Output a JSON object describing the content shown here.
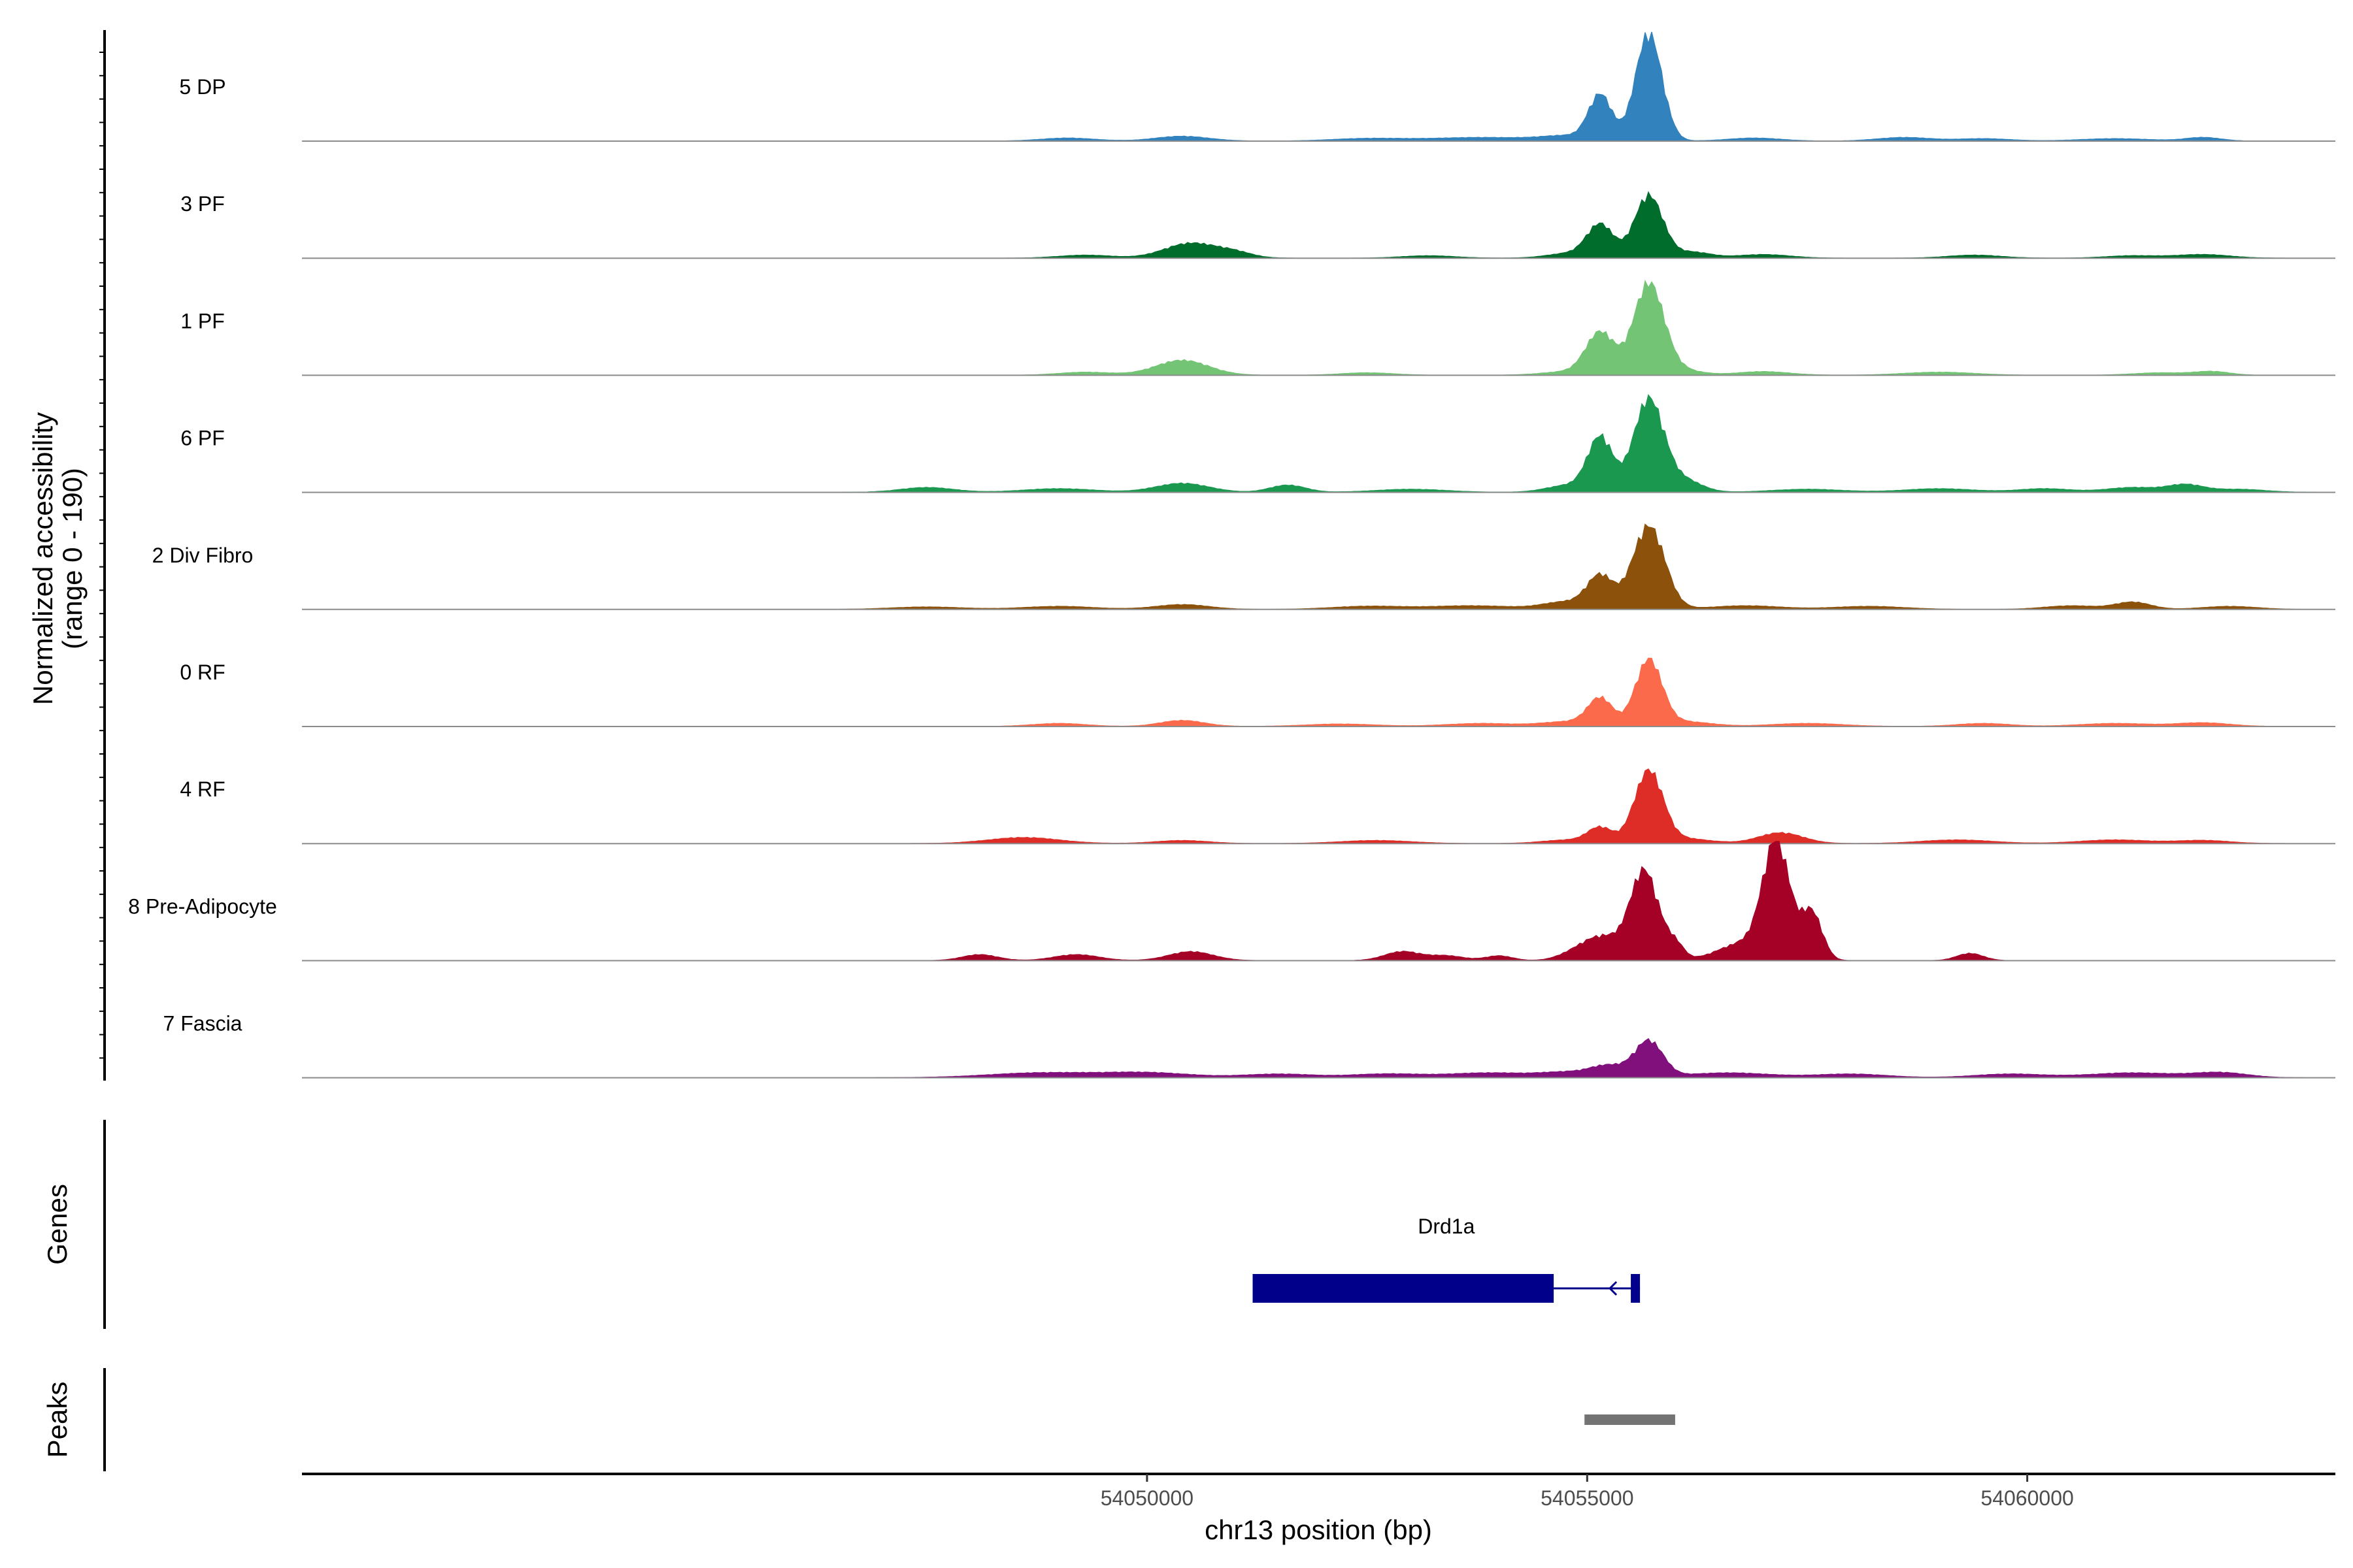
{
  "chart_data": {
    "type": "area",
    "title": "",
    "xlabel": "chr13 position (bp)",
    "xlim": [
      54040400,
      54063500
    ],
    "x_ticks": [
      54050000,
      54055000,
      54060000
    ],
    "x_tick_labels": [
      "54050000",
      "54055000",
      "54060000"
    ],
    "ylabel_line1": "Normalized accessibility",
    "ylabel_line2": "(range 0 - 190)",
    "ylim": [
      0,
      190
    ],
    "genes_label": "Genes",
    "peaks_label": "Peaks",
    "series": [
      {
        "name": "5 DP",
        "color": "#3182BD",
        "peaks": [
          [
            54055700,
            180,
            150
          ],
          [
            54055150,
            75,
            130
          ],
          [
            54054800,
            8,
            300
          ],
          [
            54053800,
            6,
            600
          ],
          [
            54050400,
            8,
            300
          ],
          [
            54049100,
            5,
            300
          ],
          [
            54052500,
            4,
            400
          ],
          [
            54056900,
            5,
            300
          ],
          [
            54058600,
            6,
            300
          ],
          [
            54059500,
            4,
            300
          ],
          [
            54061000,
            4,
            400
          ],
          [
            54062000,
            6,
            200
          ]
        ]
      },
      {
        "name": "3 PF",
        "color": "#006D2C",
        "peaks": [
          [
            54055700,
            105,
            160
          ],
          [
            54055150,
            55,
            150
          ],
          [
            54050500,
            25,
            300
          ],
          [
            54054800,
            8,
            250
          ],
          [
            54056200,
            10,
            200
          ],
          [
            54051000,
            8,
            200
          ],
          [
            54049300,
            5,
            300
          ],
          [
            54053200,
            4,
            300
          ],
          [
            54057000,
            6,
            300
          ],
          [
            54059400,
            5,
            300
          ],
          [
            54061200,
            4,
            300
          ],
          [
            54062000,
            6,
            300
          ]
        ]
      },
      {
        "name": "1 PF",
        "color": "#74C476",
        "peaks": [
          [
            54055700,
            150,
            170
          ],
          [
            54055150,
            70,
            160
          ],
          [
            54050400,
            25,
            300
          ],
          [
            54056000,
            10,
            250
          ],
          [
            54049300,
            5,
            300
          ],
          [
            54052500,
            4,
            300
          ],
          [
            54054800,
            6,
            300
          ],
          [
            54057000,
            6,
            300
          ],
          [
            54059000,
            5,
            400
          ],
          [
            54061500,
            4,
            300
          ],
          [
            54062100,
            6,
            200
          ]
        ]
      },
      {
        "name": "6 PF",
        "color": "#1A9850",
        "peaks": [
          [
            54055700,
            155,
            170
          ],
          [
            54055150,
            90,
            140
          ],
          [
            54056100,
            20,
            200
          ],
          [
            54054800,
            12,
            250
          ],
          [
            54050400,
            15,
            300
          ],
          [
            54051600,
            12,
            200
          ],
          [
            54049000,
            6,
            400
          ],
          [
            54047500,
            8,
            300
          ],
          [
            54053000,
            5,
            400
          ],
          [
            54057500,
            5,
            400
          ],
          [
            54059000,
            6,
            400
          ],
          [
            54060200,
            6,
            300
          ],
          [
            54061200,
            8,
            300
          ],
          [
            54061800,
            12,
            200
          ],
          [
            54062400,
            5,
            300
          ]
        ]
      },
      {
        "name": "2 Div Fibro",
        "color": "#8C510A",
        "peaks": [
          [
            54055700,
            140,
            180
          ],
          [
            54055150,
            55,
            150
          ],
          [
            54054750,
            12,
            250
          ],
          [
            54053700,
            6,
            500
          ],
          [
            54052500,
            5,
            400
          ],
          [
            54050400,
            8,
            300
          ],
          [
            54049000,
            5,
            400
          ],
          [
            54047500,
            4,
            400
          ],
          [
            54056800,
            6,
            400
          ],
          [
            54058200,
            5,
            400
          ],
          [
            54060500,
            6,
            300
          ],
          [
            54061200,
            12,
            200
          ],
          [
            54062300,
            5,
            300
          ]
        ]
      },
      {
        "name": "0 RF",
        "color": "#FB6A4A",
        "peaks": [
          [
            54055700,
            110,
            150
          ],
          [
            54055150,
            45,
            140
          ],
          [
            54054800,
            8,
            300
          ],
          [
            54050400,
            10,
            250
          ],
          [
            54056100,
            8,
            300
          ],
          [
            54049000,
            5,
            300
          ],
          [
            54052200,
            4,
            400
          ],
          [
            54053800,
            5,
            400
          ],
          [
            54057500,
            5,
            400
          ],
          [
            54059500,
            5,
            300
          ],
          [
            54061000,
            5,
            400
          ],
          [
            54062000,
            6,
            300
          ]
        ]
      },
      {
        "name": "4 RF",
        "color": "#DE2D26",
        "peaks": [
          [
            54055700,
            120,
            160
          ],
          [
            54055150,
            25,
            140
          ],
          [
            54057200,
            18,
            250
          ],
          [
            54048600,
            10,
            400
          ],
          [
            54054800,
            6,
            300
          ],
          [
            54056100,
            8,
            300
          ],
          [
            54050400,
            5,
            300
          ],
          [
            54052600,
            5,
            400
          ],
          [
            54059200,
            6,
            400
          ],
          [
            54061000,
            6,
            400
          ],
          [
            54062000,
            5,
            300
          ]
        ]
      },
      {
        "name": "8 Pre-Adipocyte",
        "color": "#A50026",
        "peaks": [
          [
            54057150,
            190,
            150
          ],
          [
            54055650,
            150,
            160
          ],
          [
            54057550,
            80,
            120
          ],
          [
            54056800,
            30,
            300
          ],
          [
            54055200,
            35,
            200
          ],
          [
            54056000,
            25,
            100
          ],
          [
            54054900,
            15,
            200
          ],
          [
            54050500,
            15,
            250
          ],
          [
            54052900,
            15,
            200
          ],
          [
            54048100,
            10,
            200
          ],
          [
            54049200,
            10,
            250
          ],
          [
            54059350,
            12,
            150
          ],
          [
            54053400,
            8,
            200
          ],
          [
            54054000,
            8,
            150
          ]
        ]
      },
      {
        "name": "7 Fascia",
        "color": "#810F7C",
        "peaks": [
          [
            54055700,
            60,
            160
          ],
          [
            54055250,
            18,
            200
          ],
          [
            54054800,
            8,
            300
          ],
          [
            54048800,
            8,
            600
          ],
          [
            54050000,
            8,
            500
          ],
          [
            54051500,
            6,
            400
          ],
          [
            54052700,
            6,
            400
          ],
          [
            54053900,
            8,
            500
          ],
          [
            54056600,
            8,
            500
          ],
          [
            54058000,
            6,
            400
          ],
          [
            54059800,
            6,
            400
          ],
          [
            54061200,
            8,
            500
          ],
          [
            54062200,
            8,
            300
          ]
        ]
      }
    ],
    "gene": {
      "name": "Drd1a",
      "start": 54051200,
      "end": 54055600,
      "cds_start": 54051200,
      "cds_end": 54054620,
      "strand": "-",
      "color": "#00008B"
    },
    "peak_regions": [
      {
        "start": 54054970,
        "end": 54056000,
        "color": "#737373"
      }
    ]
  }
}
